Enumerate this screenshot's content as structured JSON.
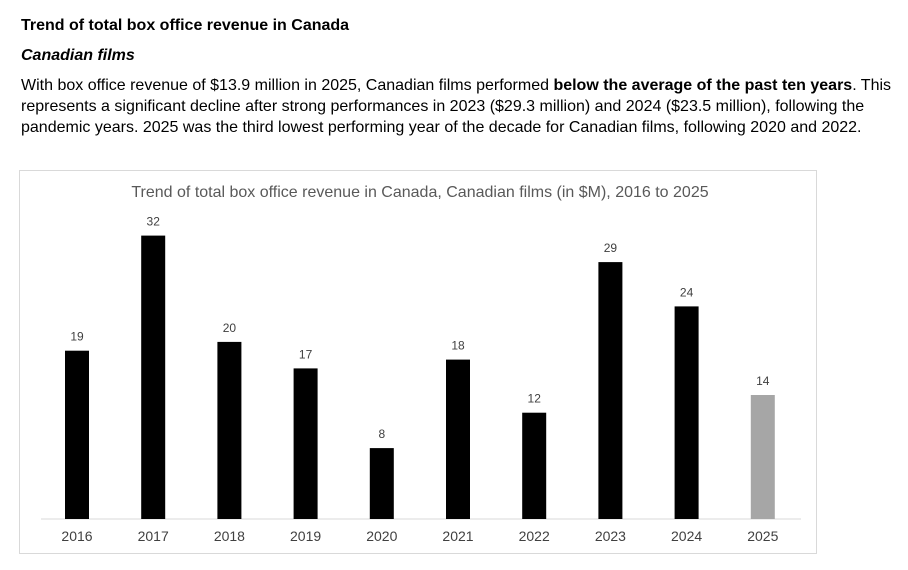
{
  "section": {
    "heading": "Trend of total box office revenue in Canada",
    "subheading": "Canadian films",
    "paragraph_part1": "With box office revenue of $13.9 million in 2025, Canadian films performed ",
    "paragraph_bold": "below the average of the past ten years",
    "paragraph_part2": ". This represents a significant decline after strong performances in 2023 ($29.3 million) and 2024 ($23.5 million), following the pandemic years. 2025 was the third lowest performing year of the decade for Canadian films, following 2020 and 2022."
  },
  "chart_data": {
    "type": "bar",
    "title": "Trend of total box office revenue in Canada, Canadian films (in $M), 2016 to 2025",
    "xlabel": "",
    "ylabel": "",
    "categories": [
      "2016",
      "2017",
      "2018",
      "2019",
      "2020",
      "2021",
      "2022",
      "2023",
      "2024",
      "2025"
    ],
    "values": [
      19,
      32,
      20,
      17,
      8,
      18,
      12,
      29,
      24,
      14
    ],
    "value_labels": [
      "19",
      "32",
      "20",
      "17",
      "8",
      "18",
      "12",
      "29",
      "24",
      "14"
    ],
    "ylim": [
      0,
      35
    ],
    "grid": false,
    "legend": "none",
    "colors": {
      "bar": "#000000",
      "highlight_bar": "#a6a6a6",
      "axis": "#d9d9d9"
    },
    "highlight_category": "2025"
  }
}
